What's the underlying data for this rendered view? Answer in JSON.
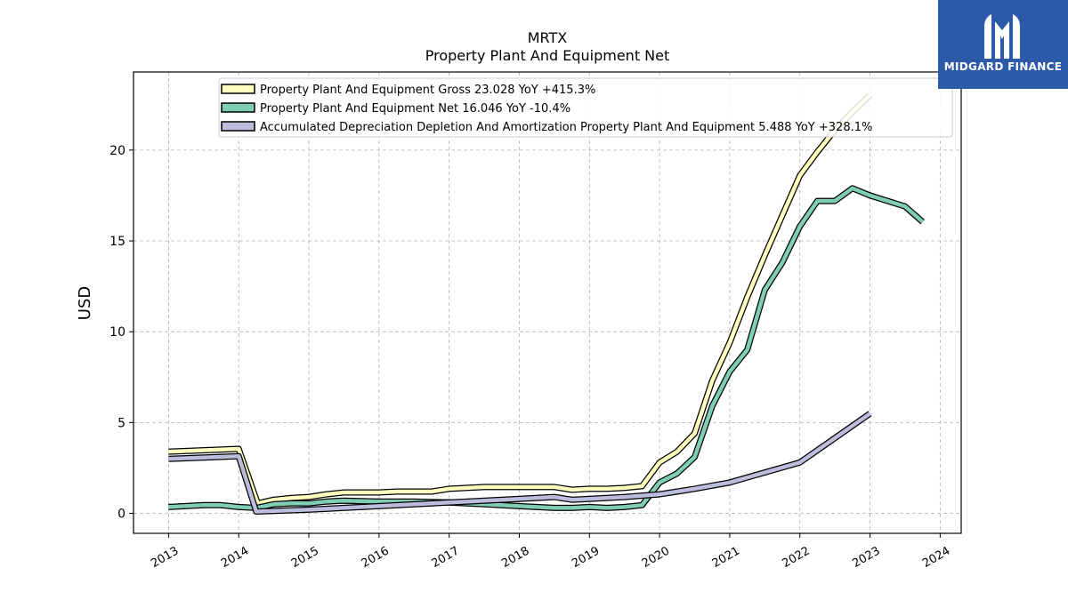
{
  "logo": {
    "text": "MIDGARD FINANCE"
  },
  "chart_data": {
    "type": "line",
    "title": "MRTX",
    "subtitle": "Property Plant And Equipment Net",
    "ylabel": "USD",
    "xlim": [
      2012.5,
      2024.3
    ],
    "ylim": [
      -1.1,
      24.3
    ],
    "xticks": [
      {
        "value": 2013,
        "label": "2013"
      },
      {
        "value": 2014,
        "label": "2014"
      },
      {
        "value": 2015,
        "label": "2015"
      },
      {
        "value": 2016,
        "label": "2016"
      },
      {
        "value": 2017,
        "label": "2017"
      },
      {
        "value": 2018,
        "label": "2018"
      },
      {
        "value": 2019,
        "label": "2019"
      },
      {
        "value": 2020,
        "label": "2020"
      },
      {
        "value": 2021,
        "label": "2021"
      },
      {
        "value": 2022,
        "label": "2022"
      },
      {
        "value": 2023,
        "label": "2023"
      },
      {
        "value": 2024,
        "label": "2024"
      }
    ],
    "yticks": [
      {
        "value": 0,
        "label": "0"
      },
      {
        "value": 5,
        "label": "5"
      },
      {
        "value": 10,
        "label": "10"
      },
      {
        "value": 15,
        "label": "15"
      },
      {
        "value": 20,
        "label": "20"
      }
    ],
    "grid": true,
    "legend_position": "top-center",
    "series": [
      {
        "name": "Property Plant And Equipment Gross  23.028 YoY +415.3%",
        "color": "#ffffbf",
        "points": [
          [
            2013.0,
            3.4
          ],
          [
            2014.0,
            3.55
          ],
          [
            2014.27,
            0.55
          ],
          [
            2014.5,
            0.75
          ],
          [
            2014.75,
            0.85
          ],
          [
            2015.0,
            0.9
          ],
          [
            2015.25,
            1.05
          ],
          [
            2015.5,
            1.15
          ],
          [
            2016.0,
            1.15
          ],
          [
            2016.25,
            1.2
          ],
          [
            2016.5,
            1.2
          ],
          [
            2016.75,
            1.2
          ],
          [
            2017.0,
            1.35
          ],
          [
            2017.25,
            1.4
          ],
          [
            2017.5,
            1.45
          ],
          [
            2018.0,
            1.45
          ],
          [
            2018.5,
            1.45
          ],
          [
            2018.75,
            1.3
          ],
          [
            2019.0,
            1.35
          ],
          [
            2019.25,
            1.35
          ],
          [
            2019.5,
            1.4
          ],
          [
            2019.75,
            1.5
          ],
          [
            2020.0,
            2.8
          ],
          [
            2020.25,
            3.4
          ],
          [
            2020.5,
            4.4
          ],
          [
            2020.75,
            7.3
          ],
          [
            2021.0,
            9.4
          ],
          [
            2021.25,
            11.9
          ],
          [
            2021.5,
            14.2
          ],
          [
            2021.75,
            16.4
          ],
          [
            2022.0,
            18.6
          ],
          [
            2022.25,
            19.9
          ],
          [
            2022.5,
            21.1
          ],
          [
            2022.75,
            22.1
          ],
          [
            2023.0,
            23.03
          ]
        ]
      },
      {
        "name": "Property Plant And Equipment Net  16.046 YoY -10.4%",
        "color": "#80cdb6",
        "points": [
          [
            2013.0,
            0.35
          ],
          [
            2013.5,
            0.45
          ],
          [
            2013.75,
            0.45
          ],
          [
            2014.0,
            0.35
          ],
          [
            2014.25,
            0.3
          ],
          [
            2014.5,
            0.5
          ],
          [
            2014.75,
            0.55
          ],
          [
            2015.0,
            0.55
          ],
          [
            2015.25,
            0.65
          ],
          [
            2015.5,
            0.7
          ],
          [
            2016.0,
            0.65
          ],
          [
            2016.5,
            0.65
          ],
          [
            2017.0,
            0.6
          ],
          [
            2017.5,
            0.5
          ],
          [
            2018.0,
            0.4
          ],
          [
            2018.5,
            0.3
          ],
          [
            2018.75,
            0.3
          ],
          [
            2019.0,
            0.35
          ],
          [
            2019.25,
            0.3
          ],
          [
            2019.5,
            0.35
          ],
          [
            2019.75,
            0.45
          ],
          [
            2020.0,
            1.7
          ],
          [
            2020.25,
            2.2
          ],
          [
            2020.5,
            3.1
          ],
          [
            2020.75,
            5.9
          ],
          [
            2021.0,
            7.8
          ],
          [
            2021.25,
            9.0
          ],
          [
            2021.5,
            12.3
          ],
          [
            2021.75,
            13.8
          ],
          [
            2022.0,
            15.8
          ],
          [
            2022.25,
            17.2
          ],
          [
            2022.5,
            17.2
          ],
          [
            2022.75,
            17.9
          ],
          [
            2023.0,
            17.5
          ],
          [
            2023.5,
            16.9
          ],
          [
            2023.75,
            16.05
          ]
        ]
      },
      {
        "name": "Accumulated Depreciation Depletion And Amortization Property Plant And Equipment  5.488 YoY +328.1%",
        "color": "#bcbddc",
        "points": [
          [
            2013.0,
            3.0
          ],
          [
            2014.0,
            3.15
          ],
          [
            2014.25,
            0.1
          ],
          [
            2015.0,
            0.2
          ],
          [
            2016.0,
            0.4
          ],
          [
            2017.0,
            0.6
          ],
          [
            2018.0,
            0.8
          ],
          [
            2018.5,
            0.9
          ],
          [
            2018.75,
            0.75
          ],
          [
            2019.0,
            0.8
          ],
          [
            2019.5,
            0.9
          ],
          [
            2020.0,
            1.05
          ],
          [
            2020.5,
            1.35
          ],
          [
            2021.0,
            1.7
          ],
          [
            2022.0,
            2.8
          ],
          [
            2023.0,
            5.49
          ]
        ]
      }
    ]
  }
}
